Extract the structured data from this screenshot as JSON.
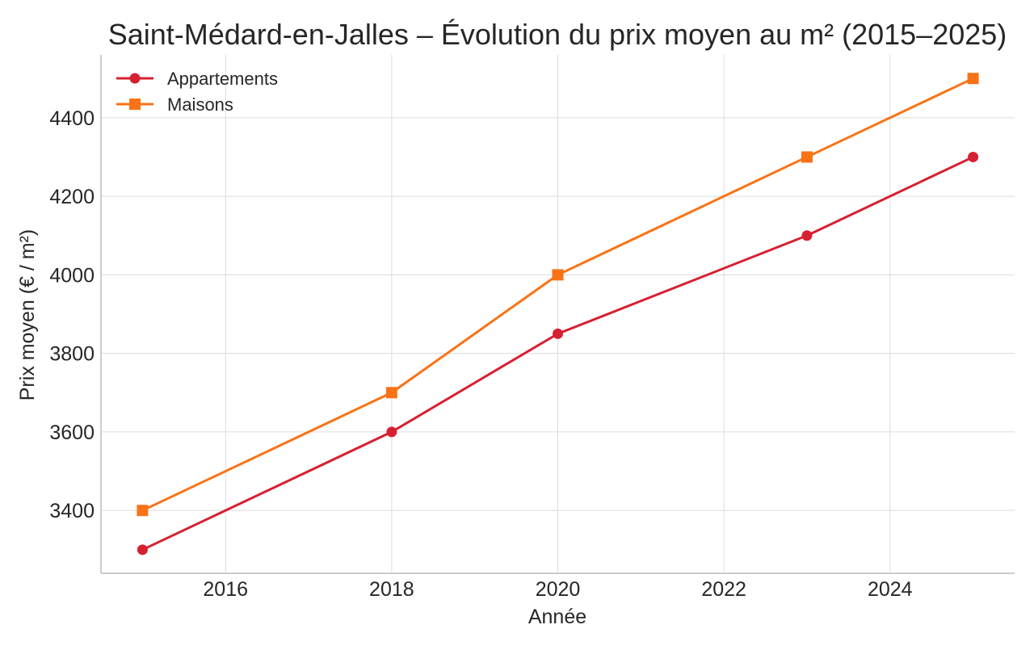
{
  "chart_data": {
    "type": "line",
    "title": "Saint-Médard-en-Jalles – Évolution du prix moyen au m² (2015–2025)",
    "xlabel": "Année",
    "ylabel": "Prix moyen (€ / m²)",
    "xlim": [
      2014.5,
      2025.5
    ],
    "ylim": [
      3240,
      4560
    ],
    "xticks": [
      2016,
      2018,
      2020,
      2022,
      2024
    ],
    "yticks": [
      3400,
      3600,
      3800,
      4000,
      4200,
      4400
    ],
    "grid": true,
    "legend_position": "top-left",
    "series": [
      {
        "name": "Appartements",
        "marker": "circle",
        "color": "#d62031",
        "x": [
          2015,
          2018,
          2020,
          2023,
          2025
        ],
        "y": [
          3300,
          3600,
          3850,
          4100,
          4300
        ]
      },
      {
        "name": "Maisons",
        "marker": "square",
        "color": "#f97316",
        "x": [
          2015,
          2018,
          2020,
          2023,
          2025
        ],
        "y": [
          3400,
          3700,
          4000,
          4300,
          4500
        ]
      }
    ]
  }
}
